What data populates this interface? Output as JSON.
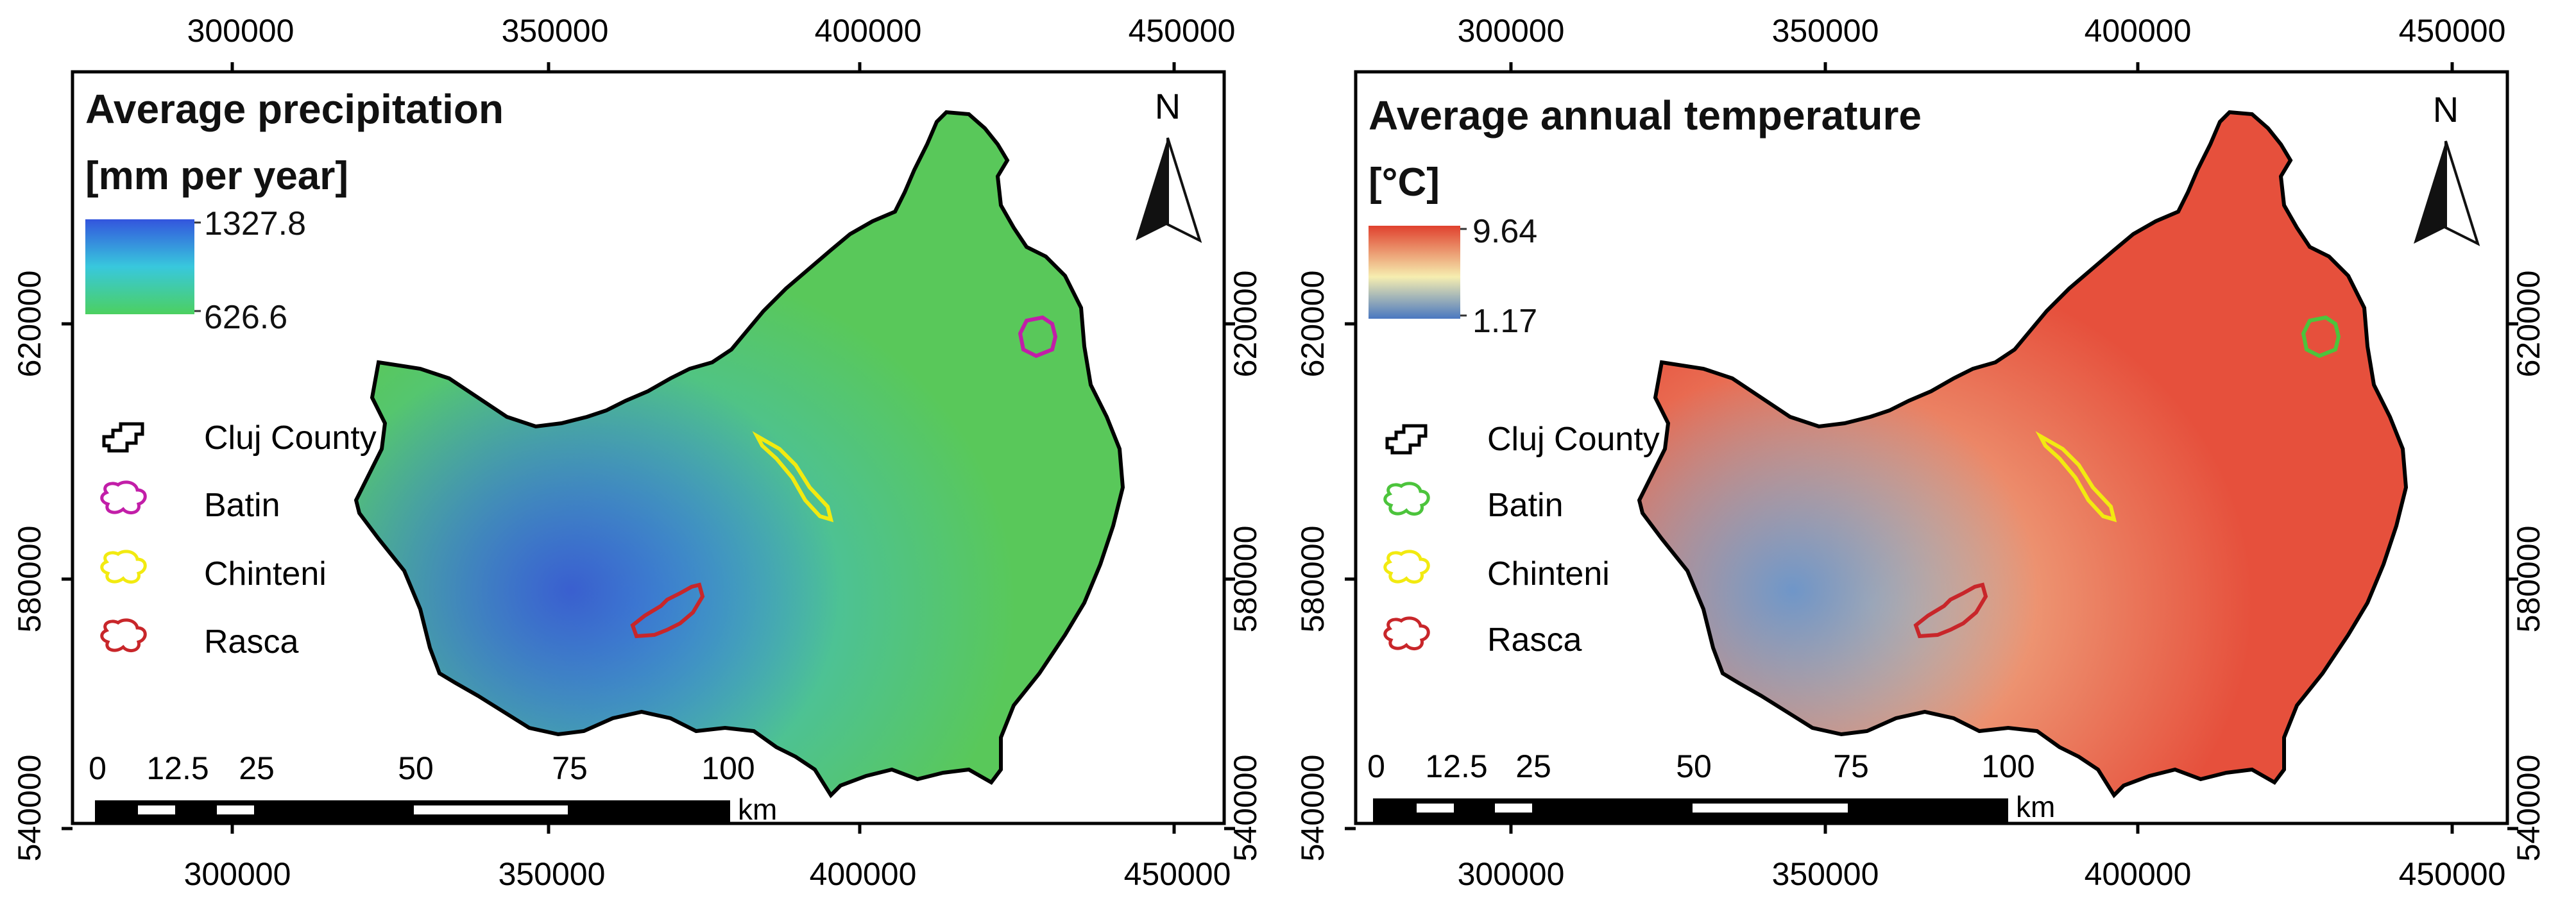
{
  "panels": [
    {
      "title": "Average precipitation",
      "unit": "[mm per year]",
      "scale": {
        "max": "1327.8",
        "min": "626.6",
        "colors": [
          "#3355dd",
          "#38c8dd",
          "#4cd060"
        ]
      },
      "fill_colors": {
        "base": "#59c85a",
        "high": "#3fbad8",
        "peak": "#3a5fcf"
      },
      "north": "N",
      "legend": [
        {
          "label": "Cluj County",
          "color": "#000000"
        },
        {
          "label": "Batin",
          "color": "#c21ea8"
        },
        {
          "label": "Chinteni",
          "color": "#f2ea10"
        },
        {
          "label": "Rasca",
          "color": "#c8262a"
        }
      ],
      "x_ticks": [
        "300000",
        "350000",
        "400000",
        "450000"
      ],
      "y_ticks": [
        "620000",
        "580000",
        "540000"
      ],
      "scale_bar": {
        "labels": [
          "0",
          "12.5",
          "25",
          "50",
          "75",
          "100"
        ],
        "unit": "km"
      }
    },
    {
      "title": "Average annual temperature",
      "unit": "[°C]",
      "scale": {
        "max": "9.64",
        "min": "1.17",
        "colors": [
          "#e0412e",
          "#f6eeb0",
          "#4a78c0"
        ]
      },
      "fill_colors": {
        "base": "#e6503c",
        "high": "#f2c79a",
        "peak": "#6f96c8"
      },
      "north": "N",
      "legend": [
        {
          "label": "Cluj County",
          "color": "#000000"
        },
        {
          "label": "Batin",
          "color": "#4cc43c"
        },
        {
          "label": "Chinteni",
          "color": "#f2ea10"
        },
        {
          "label": "Rasca",
          "color": "#c8262a"
        }
      ],
      "x_ticks": [
        "300000",
        "350000",
        "400000",
        "450000"
      ],
      "y_ticks": [
        "620000",
        "580000",
        "540000"
      ],
      "scale_bar": {
        "labels": [
          "0",
          "12.5",
          "25",
          "50",
          "75",
          "100"
        ],
        "unit": "km"
      }
    }
  ]
}
